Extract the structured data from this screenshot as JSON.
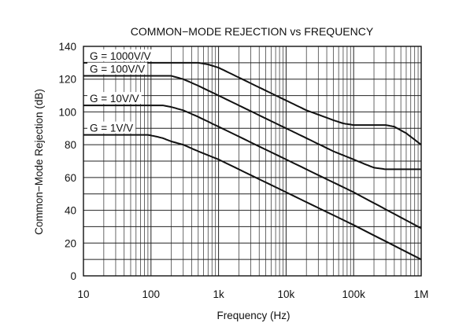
{
  "chart_data": {
    "type": "line",
    "title": "COMMON−MODE REJECTION vs FREQUENCY",
    "xlabel": "Frequency (Hz)",
    "ylabel": "Common−Mode Rejection (dB)",
    "x_scale": "log",
    "xlim": [
      10,
      1000000
    ],
    "ylim": [
      0,
      140
    ],
    "grid": true,
    "x_ticks": [
      10,
      100,
      1000,
      10000,
      100000,
      1000000
    ],
    "x_tick_labels": [
      "10",
      "100",
      "1k",
      "10k",
      "100k",
      "1M"
    ],
    "y_ticks": [
      0,
      20,
      40,
      60,
      80,
      100,
      120,
      140
    ],
    "y_tick_labels": [
      "0",
      "20",
      "40",
      "60",
      "80",
      "100",
      "120",
      "140"
    ],
    "series": [
      {
        "name": "G = 1000V/V",
        "x": [
          10,
          500,
          700,
          1000,
          2000,
          5000,
          10000,
          20000,
          50000,
          70000,
          100000,
          200000,
          300000,
          400000,
          600000,
          1000000
        ],
        "y": [
          130,
          130,
          129,
          127,
          121,
          113,
          107,
          101,
          95,
          93,
          92,
          92,
          92,
          91,
          87,
          80
        ]
      },
      {
        "name": "G = 100V/V",
        "x": [
          10,
          200,
          300,
          500,
          1000,
          2000,
          5000,
          10000,
          20000,
          50000,
          100000,
          150000,
          200000,
          300000,
          500000,
          1000000
        ],
        "y": [
          122,
          122,
          120,
          116,
          110,
          104,
          96,
          90,
          84,
          76,
          71,
          68,
          66,
          65,
          65,
          65
        ]
      },
      {
        "name": "G = 10V/V",
        "x": [
          10,
          150,
          200,
          300,
          500,
          1000,
          10000,
          100000,
          1000000
        ],
        "y": [
          104,
          104,
          103,
          101,
          97,
          91,
          71,
          51,
          29
        ]
      },
      {
        "name": "G = 1V/V",
        "x": [
          10,
          90,
          120,
          150,
          200,
          300,
          500,
          1000,
          10000,
          100000,
          1000000
        ],
        "y": [
          86,
          86,
          85,
          84,
          82,
          80,
          76,
          71,
          51,
          31,
          10
        ]
      }
    ]
  }
}
